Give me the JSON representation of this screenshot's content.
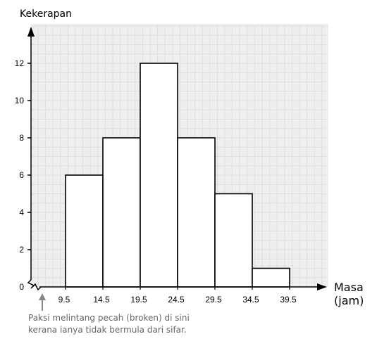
{
  "chart_data": {
    "type": "bar",
    "ylabel": "Kekerapan",
    "xlabel_line1": "Masa",
    "xlabel_line2": "(jam)",
    "boundaries": [
      "9.5",
      "14.5",
      "19.5",
      "24.5",
      "29.5",
      "34.5",
      "39.5"
    ],
    "frequencies": [
      6,
      8,
      12,
      8,
      5,
      1
    ],
    "yticks": [
      0,
      2,
      4,
      6,
      8,
      10,
      12
    ],
    "ylim": [
      0,
      14
    ],
    "xlim": [
      9.5,
      39.5
    ],
    "broken_axis": true,
    "grid": true
  },
  "annotation": {
    "line1": "Paksi melintang pecah (broken) di sini",
    "line2": "kerana ianya tidak bermula dari sifar."
  },
  "colors": {
    "bar_fill": "#ffffff",
    "bar_stroke": "#000000",
    "grid": "#d8d8d8",
    "plot_background": "#eeeeee",
    "annotation_text": "#666666",
    "arrow_gray": "#888888"
  }
}
